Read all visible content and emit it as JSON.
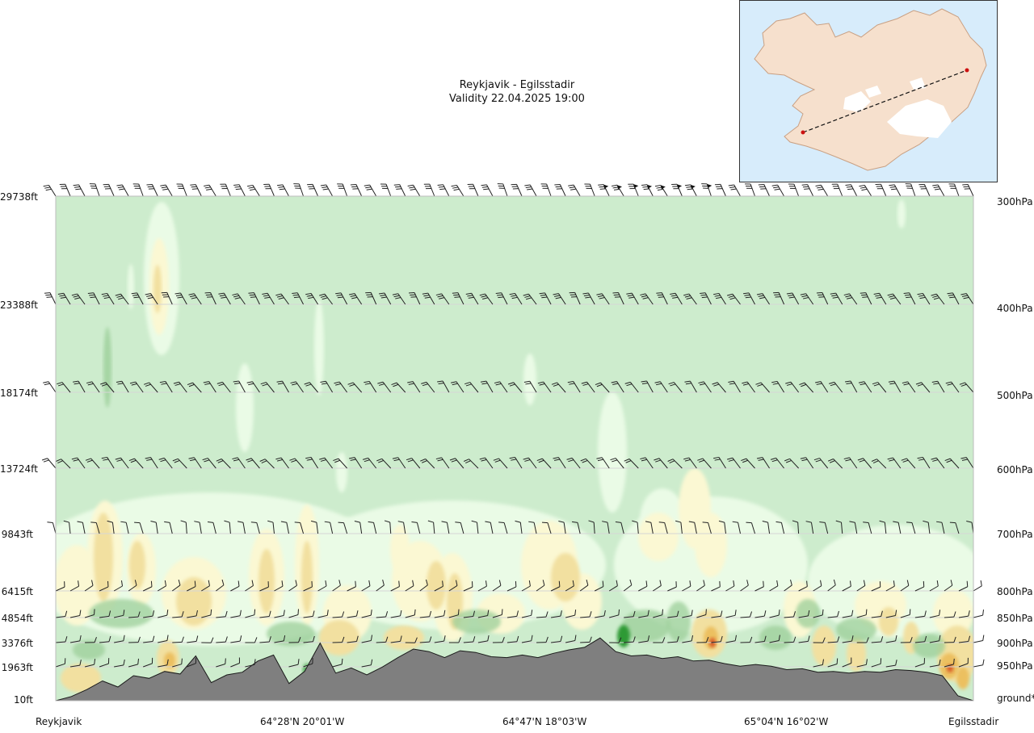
{
  "chart_data": {
    "type": "heatmap",
    "title": "Reykjavik - Egilsstadir",
    "subtitle": "Validity 22.04.2025 19:00",
    "levels": [
      {
        "ft": "29738ft",
        "hpa": "300hPa"
      },
      {
        "ft": "23388ft",
        "hpa": "400hPa"
      },
      {
        "ft": "18174ft",
        "hpa": "500hPa"
      },
      {
        "ft": "13724ft",
        "hpa": "600hPa"
      },
      {
        "ft": "9843ft",
        "hpa": "700hPa"
      },
      {
        "ft": "6415ft",
        "hpa": "800hPa"
      },
      {
        "ft": "4854ft",
        "hpa": "850hPa"
      },
      {
        "ft": "3376ft",
        "hpa": "900hPa"
      },
      {
        "ft": "1963ft",
        "hpa": "950hPa"
      },
      {
        "ft": "10ft",
        "hpa": "ground*"
      }
    ],
    "x_labels": [
      "Reykjavik",
      "64°28'N 20°01'W",
      "64°47'N 18°03'W",
      "65°04'N 16°02'W",
      "Egilsstadir"
    ],
    "terrain_ft": [
      10,
      250,
      650,
      1150,
      800,
      1450,
      1300,
      1700,
      1550,
      2600,
      1050,
      1500,
      1650,
      2300,
      2650,
      1000,
      1700,
      3350,
      1600,
      1900,
      1500,
      1950,
      2500,
      3000,
      2850,
      2500,
      2900,
      2800,
      2550,
      2500,
      2650,
      2500,
      2750,
      2950,
      3100,
      3650,
      2850,
      2600,
      2650,
      2450,
      2550,
      2300,
      2350,
      2150,
      2000,
      2100,
      2000,
      1800,
      1850,
      1650,
      1700,
      1600,
      1700,
      1650,
      1800,
      1750,
      1650,
      1450,
      300,
      10
    ],
    "route": {
      "from": "Reykjavik",
      "to": "Egilsstadir"
    },
    "colors": {
      "background": "#cdeccd",
      "very_light": "#eafbe6",
      "pale_yellow": "#fbf8d3",
      "yellow": "#f2e0a0",
      "orange": "#ecc060",
      "red": "#d95a25",
      "mid_green": "#9ccf9a",
      "dark_green": "#2e9a35",
      "terrain": "#7f7f7f",
      "route_line": "#111111",
      "route_marker": "#cc1111"
    },
    "legend": "none",
    "grid": true
  }
}
